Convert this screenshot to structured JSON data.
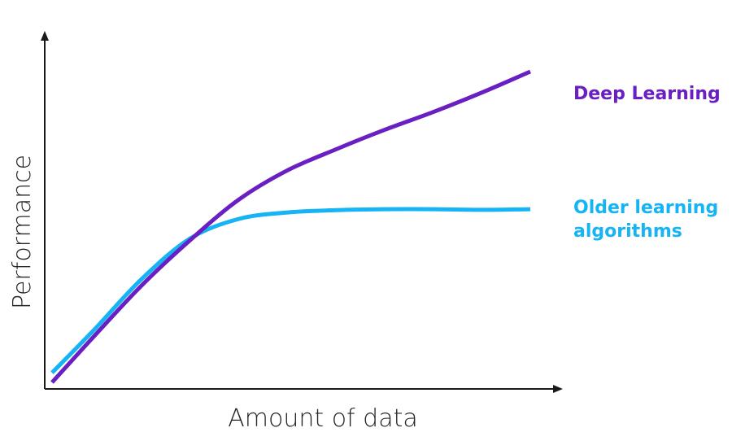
{
  "chart_data": {
    "type": "line",
    "title": "",
    "xlabel": "Amount of data",
    "ylabel": "Performance",
    "xlim": [
      0,
      10
    ],
    "ylim": [
      0,
      10
    ],
    "grid": false,
    "legend": "right (inline labels)",
    "series": [
      {
        "name": "Deep Learning",
        "label_lines": [
          "Deep Learning"
        ],
        "color": "#6a1fc2",
        "x": [
          0.15,
          1.0,
          2.0,
          3.0,
          4.0,
          5.0,
          6.0,
          7.0,
          8.0,
          9.0,
          10.0
        ],
        "y": [
          0.2,
          1.6,
          3.2,
          4.6,
          5.85,
          6.75,
          7.4,
          8.0,
          8.55,
          9.15,
          9.8
        ]
      },
      {
        "name": "Older learning algorithms",
        "label_lines": [
          "Older learning",
          "algorithms"
        ],
        "color": "#16b4f5",
        "x": [
          0.15,
          1.0,
          2.0,
          3.0,
          4.0,
          5.0,
          6.0,
          7.0,
          8.0,
          9.0,
          10.0
        ],
        "y": [
          0.5,
          1.8,
          3.4,
          4.65,
          5.25,
          5.45,
          5.52,
          5.55,
          5.55,
          5.53,
          5.55
        ]
      }
    ]
  }
}
